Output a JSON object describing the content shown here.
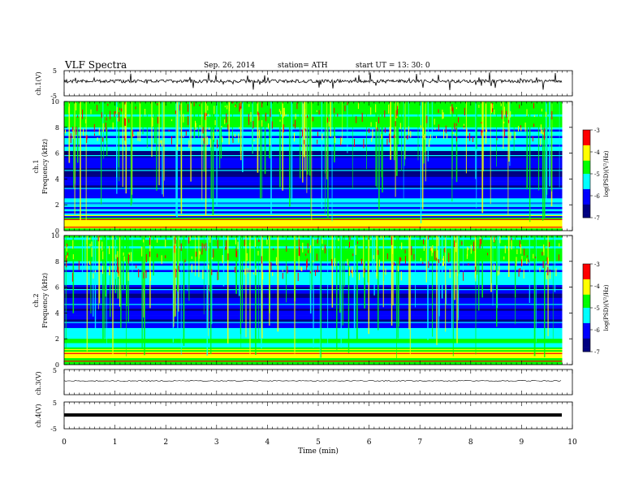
{
  "header": {
    "title": "VLF  Spectra",
    "date": "Sep. 26, 2014",
    "station": "station= ATH",
    "start": "start  UT =   13: 30: 0"
  },
  "chart_data": [
    {
      "type": "line",
      "channel": "ch.1",
      "ylabel": "ch.1(V)",
      "ylim": [
        -5,
        5
      ],
      "yticks": [
        "5",
        "-5"
      ],
      "xlim": [
        0,
        10
      ],
      "description_level": 1.5
    },
    {
      "type": "heatmap",
      "channel": "ch.1",
      "ylabel_top": "ch.1",
      "ylabel": "Frequency  (kHz)",
      "ylim": [
        0,
        10
      ],
      "yticks": [
        "0",
        "2",
        "4",
        "6",
        "8",
        "10"
      ],
      "xlim": [
        0,
        10
      ],
      "data_end_min": 9.8,
      "colorbar": {
        "label": "log(PSD)(V²/Hz)",
        "range": [
          -7,
          -3
        ],
        "ticks": [
          "-3",
          "-4",
          "-5",
          "-6",
          "-7"
        ]
      }
    },
    {
      "type": "heatmap",
      "channel": "ch.2",
      "ylabel_top": "ch.2",
      "ylabel": "Frequency  (kHz)",
      "ylim": [
        0,
        10
      ],
      "yticks": [
        "0",
        "2",
        "4",
        "6",
        "8",
        "10"
      ],
      "xlim": [
        0,
        10
      ],
      "data_end_min": 9.8,
      "colorbar": {
        "label": "log(PSD)(V²/Hz)",
        "range": [
          -7,
          -3
        ],
        "ticks": [
          "-3",
          "-4",
          "-5",
          "-6",
          "-7"
        ]
      }
    },
    {
      "type": "line",
      "channel": "ch.3",
      "ylabel": "ch.3(V)",
      "ylim": [
        -5,
        5
      ],
      "yticks": [
        "5",
        "-5"
      ],
      "xlim": [
        0,
        10
      ]
    },
    {
      "type": "line",
      "channel": "ch.4",
      "ylabel": "ch.4(V)",
      "ylim": [
        -5,
        5
      ],
      "yticks": [
        "5",
        "-5"
      ],
      "xlim": [
        0,
        10
      ]
    }
  ],
  "xaxis": {
    "label": "Time  (min)",
    "ticks": [
      "0",
      "1",
      "2",
      "3",
      "4",
      "5",
      "6",
      "7",
      "8",
      "9",
      "10"
    ]
  },
  "colors": {
    "black": "#000000",
    "colormap": [
      "#000080",
      "#0000ff",
      "#00ffff",
      "#00ff00",
      "#ffff00",
      "#ff0000",
      "#ffffff"
    ]
  }
}
